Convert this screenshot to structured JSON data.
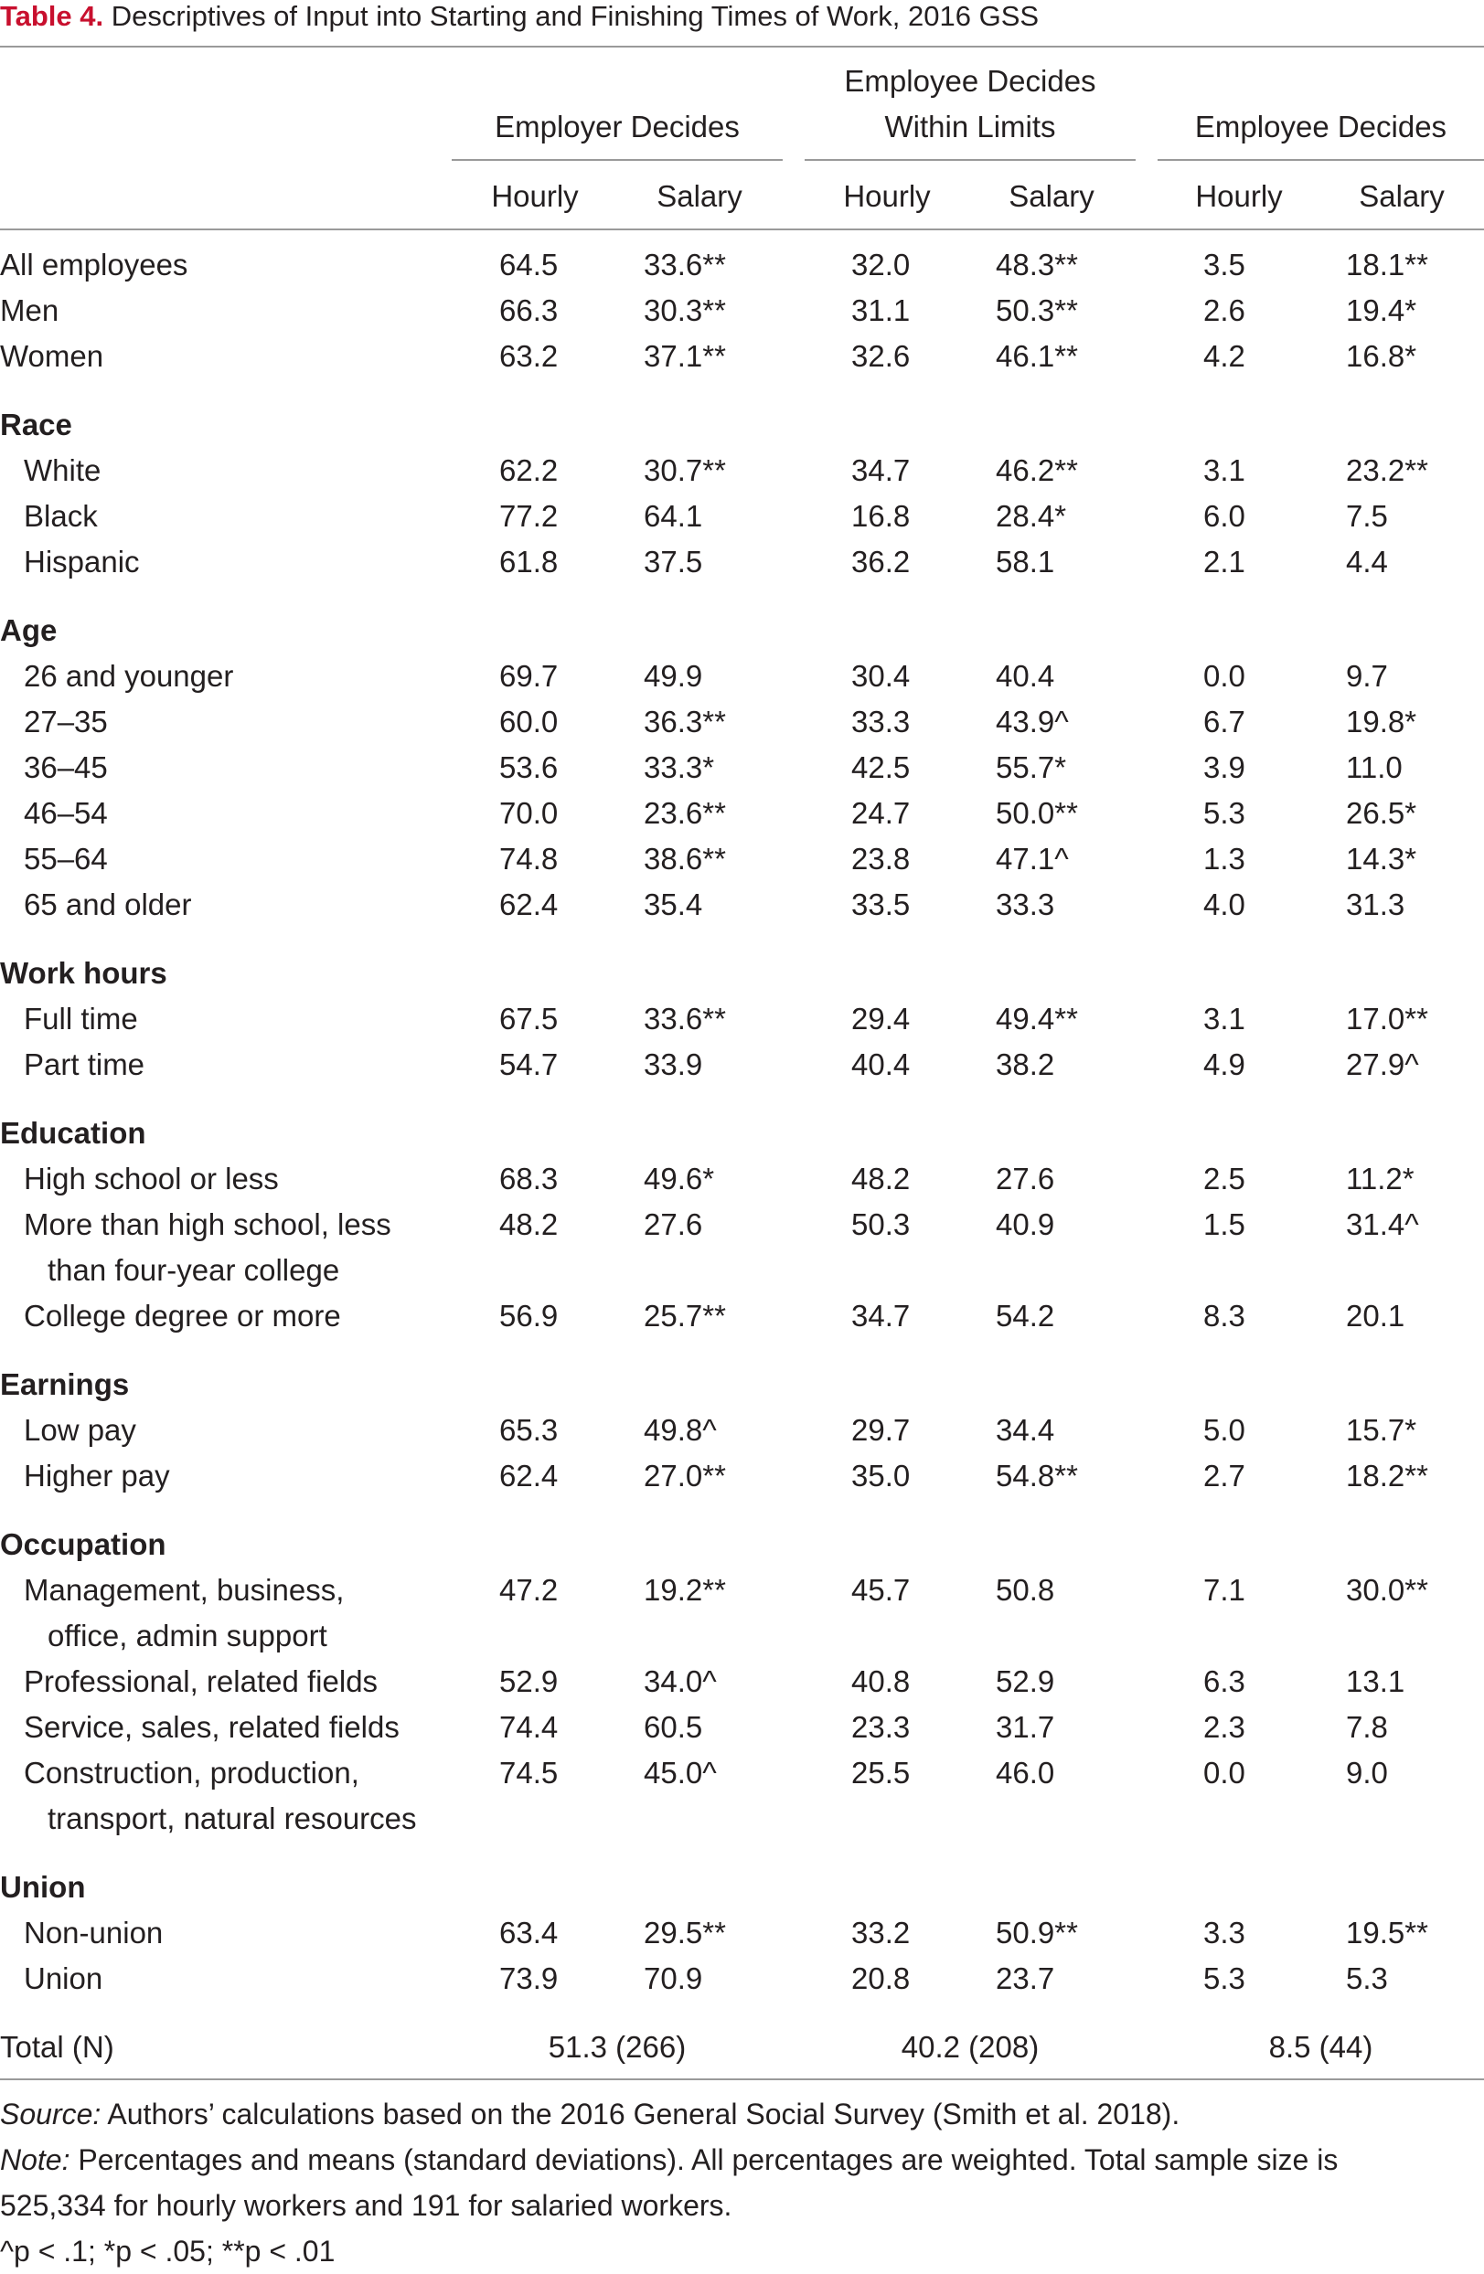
{
  "title": {
    "label": "Table 4.",
    "text": " Descriptives of Input into Starting and Finishing Times of Work, 2016 GSS"
  },
  "column_groups": [
    {
      "label_line1": "",
      "label_line2": "Employer Decides"
    },
    {
      "label_line1": "Employee Decides",
      "label_line2": "Within Limits"
    },
    {
      "label_line1": "",
      "label_line2": "Employee Decides"
    }
  ],
  "subheaders": [
    "Hourly",
    "Salary",
    "Hourly",
    "Salary",
    "Hourly",
    "Salary"
  ],
  "rows": [
    {
      "type": "row",
      "indent": 0,
      "label": "All employees",
      "values": [
        "64.5",
        "33.6**",
        "32.0",
        "48.3**",
        "3.5",
        "18.1**"
      ]
    },
    {
      "type": "row",
      "indent": 0,
      "label": "Men",
      "values": [
        "66.3",
        "30.3**",
        "31.1",
        "50.3**",
        "2.6",
        "19.4*"
      ]
    },
    {
      "type": "row",
      "indent": 0,
      "label": "Women",
      "values": [
        "63.2",
        "37.1**",
        "32.6",
        "46.1**",
        "4.2",
        "16.8*"
      ]
    },
    {
      "type": "section",
      "label": "Race"
    },
    {
      "type": "row",
      "indent": 1,
      "label": "White",
      "values": [
        "62.2",
        "30.7**",
        "34.7",
        "46.2**",
        "3.1",
        "23.2**"
      ]
    },
    {
      "type": "row",
      "indent": 1,
      "label": "Black",
      "values": [
        "77.2",
        "64.1",
        "16.8",
        "28.4*",
        "6.0",
        "7.5"
      ]
    },
    {
      "type": "row",
      "indent": 1,
      "label": "Hispanic",
      "values": [
        "61.8",
        "37.5",
        "36.2",
        "58.1",
        "2.1",
        "4.4"
      ]
    },
    {
      "type": "section",
      "label": "Age"
    },
    {
      "type": "row",
      "indent": 1,
      "label": "26 and younger",
      "values": [
        "69.7",
        "49.9",
        "30.4",
        "40.4",
        "0.0",
        "9.7"
      ]
    },
    {
      "type": "row",
      "indent": 1,
      "label": "27–35",
      "values": [
        "60.0",
        "36.3**",
        "33.3",
        "43.9^",
        "6.7",
        "19.8*"
      ]
    },
    {
      "type": "row",
      "indent": 1,
      "label": "36–45",
      "values": [
        "53.6",
        "33.3*",
        "42.5",
        "55.7*",
        "3.9",
        "11.0"
      ]
    },
    {
      "type": "row",
      "indent": 1,
      "label": "46–54",
      "values": [
        "70.0",
        "23.6**",
        "24.7",
        "50.0**",
        "5.3",
        "26.5*"
      ]
    },
    {
      "type": "row",
      "indent": 1,
      "label": "55–64",
      "values": [
        "74.8",
        "38.6**",
        "23.8",
        "47.1^",
        "1.3",
        "14.3*"
      ]
    },
    {
      "type": "row",
      "indent": 1,
      "label": "65 and older",
      "values": [
        "62.4",
        "35.4",
        "33.5",
        "33.3",
        "4.0",
        "31.3"
      ]
    },
    {
      "type": "section",
      "label": "Work hours"
    },
    {
      "type": "row",
      "indent": 1,
      "label": "Full time",
      "values": [
        "67.5",
        "33.6**",
        "29.4",
        "49.4**",
        "3.1",
        "17.0**"
      ]
    },
    {
      "type": "row",
      "indent": 1,
      "label": "Part time",
      "values": [
        "54.7",
        "33.9",
        "40.4",
        "38.2",
        "4.9",
        "27.9^"
      ]
    },
    {
      "type": "section",
      "label": "Education"
    },
    {
      "type": "row",
      "indent": 1,
      "label": "High school or less",
      "values": [
        "68.3",
        "49.6*",
        "48.2",
        "27.6",
        "2.5",
        "11.2*"
      ]
    },
    {
      "type": "row",
      "indent": 1,
      "label": "More than high school, less",
      "values": [
        "48.2",
        "27.6",
        "50.3",
        "40.9",
        "1.5",
        "31.4^"
      ]
    },
    {
      "type": "cont",
      "label": "than four-year college"
    },
    {
      "type": "row",
      "indent": 1,
      "label": "College degree or more",
      "values": [
        "56.9",
        "25.7**",
        "34.7",
        "54.2",
        "8.3",
        "20.1"
      ]
    },
    {
      "type": "section",
      "label": "Earnings"
    },
    {
      "type": "row",
      "indent": 1,
      "label": "Low pay",
      "values": [
        "65.3",
        "49.8^",
        "29.7",
        "34.4",
        "5.0",
        "15.7*"
      ]
    },
    {
      "type": "row",
      "indent": 1,
      "label": "Higher pay",
      "values": [
        "62.4",
        "27.0**",
        "35.0",
        "54.8**",
        "2.7",
        "18.2**"
      ]
    },
    {
      "type": "section",
      "label": "Occupation"
    },
    {
      "type": "row",
      "indent": 1,
      "label": "Management, business,",
      "values": [
        "47.2",
        "19.2**",
        "45.7",
        "50.8",
        "7.1",
        "30.0**"
      ]
    },
    {
      "type": "cont",
      "label": "office, admin support"
    },
    {
      "type": "row",
      "indent": 1,
      "label": "Professional, related fields",
      "values": [
        "52.9",
        "34.0^",
        "40.8",
        "52.9",
        "6.3",
        "13.1"
      ]
    },
    {
      "type": "row",
      "indent": 1,
      "label": "Service, sales, related fields",
      "values": [
        "74.4",
        "60.5",
        "23.3",
        "31.7",
        "2.3",
        "7.8"
      ]
    },
    {
      "type": "row",
      "indent": 1,
      "label": "Construction, production,",
      "values": [
        "74.5",
        "45.0^",
        "25.5",
        "46.0",
        "0.0",
        "9.0"
      ]
    },
    {
      "type": "cont",
      "label": "transport, natural resources"
    },
    {
      "type": "section",
      "label": "Union"
    },
    {
      "type": "row",
      "indent": 1,
      "label": "Non-union",
      "values": [
        "63.4",
        "29.5**",
        "33.2",
        "50.9**",
        "3.3",
        "19.5**"
      ]
    },
    {
      "type": "row",
      "indent": 1,
      "label": "Union",
      "values": [
        "73.9",
        "70.9",
        "20.8",
        "23.7",
        "5.3",
        "5.3"
      ]
    }
  ],
  "total": {
    "label": "Total (N)",
    "values": [
      "51.3 (266)",
      "40.2 (208)",
      "8.5 (44)"
    ]
  },
  "notes": {
    "source_label": "Source:",
    "source_text": " Authors’ calculations based on the 2016 General Social Survey (Smith et al. 2018).",
    "note_label": "Note:",
    "note_text_line1": " Percentages and means (standard deviations). All percentages are weighted. Total sample size is",
    "note_text_line2": "525,334 for hourly workers and 191 for salaried workers.",
    "significance": "^p < .1; *p < .05; **p < .01"
  },
  "colors": {
    "title_label": "#c8102e",
    "text": "#231f20",
    "rules": "#9a9a9a"
  }
}
